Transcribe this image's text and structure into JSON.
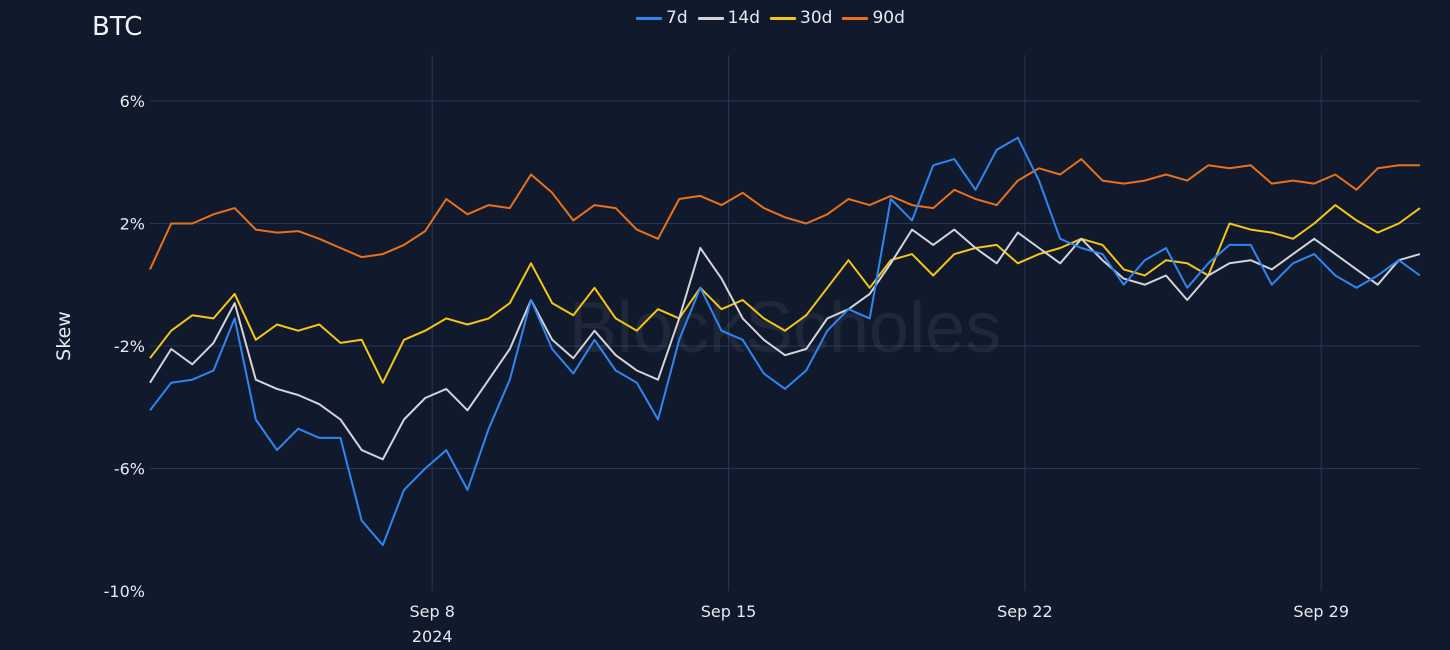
{
  "chart_data": {
    "type": "line",
    "title": "BTC",
    "xlabel": "",
    "ylabel": "Skew",
    "ylim": [
      -10,
      7.5
    ],
    "xlim": [
      "2024-09-01T08:00",
      "2024-10-01T08:00"
    ],
    "y_ticks": [
      6,
      2,
      -2,
      -6,
      -10
    ],
    "y_tick_labels": [
      "6%",
      "2%",
      "-2%",
      "-6%",
      "-10%"
    ],
    "x_ticks": [
      "2024-09-08T00:00",
      "2024-09-15T00:00",
      "2024-09-22T00:00",
      "2024-09-29T00:00"
    ],
    "x_tick_labels": [
      "Sep 8",
      "Sep 15",
      "Sep 22",
      "Sep 29"
    ],
    "x_tick_year": "2024",
    "grid": true,
    "legend_position": "top-center",
    "background_color": "#111a2c",
    "grid_color": "#26365a",
    "watermark": "BlockScholes",
    "x": [
      "2024-09-01T08:00",
      "2024-09-01T20:00",
      "2024-09-02T08:00",
      "2024-09-02T20:00",
      "2024-09-03T08:00",
      "2024-09-03T20:00",
      "2024-09-04T08:00",
      "2024-09-04T20:00",
      "2024-09-05T08:00",
      "2024-09-05T20:00",
      "2024-09-06T08:00",
      "2024-09-06T20:00",
      "2024-09-07T08:00",
      "2024-09-07T20:00",
      "2024-09-08T08:00",
      "2024-09-08T20:00",
      "2024-09-09T08:00",
      "2024-09-09T20:00",
      "2024-09-10T08:00",
      "2024-09-10T20:00",
      "2024-09-11T08:00",
      "2024-09-11T20:00",
      "2024-09-12T08:00",
      "2024-09-12T20:00",
      "2024-09-13T08:00",
      "2024-09-13T20:00",
      "2024-09-14T08:00",
      "2024-09-14T20:00",
      "2024-09-15T08:00",
      "2024-09-15T20:00",
      "2024-09-16T08:00",
      "2024-09-16T20:00",
      "2024-09-17T08:00",
      "2024-09-17T20:00",
      "2024-09-18T08:00",
      "2024-09-18T20:00",
      "2024-09-19T08:00",
      "2024-09-19T20:00",
      "2024-09-20T08:00",
      "2024-09-20T20:00",
      "2024-09-21T08:00",
      "2024-09-21T20:00",
      "2024-09-22T08:00",
      "2024-09-22T20:00",
      "2024-09-23T08:00",
      "2024-09-23T20:00",
      "2024-09-24T08:00",
      "2024-09-24T20:00",
      "2024-09-25T08:00",
      "2024-09-25T20:00",
      "2024-09-26T08:00",
      "2024-09-26T20:00",
      "2024-09-27T08:00",
      "2024-09-27T20:00",
      "2024-09-28T08:00",
      "2024-09-28T20:00",
      "2024-09-29T08:00",
      "2024-09-29T20:00",
      "2024-09-30T08:00",
      "2024-09-30T20:00",
      "2024-10-01T08:00"
    ],
    "series": [
      {
        "name": "7d",
        "color": "#2f86f0",
        "values": [
          -4.1,
          -3.2,
          -3.1,
          -2.8,
          -1.1,
          -4.4,
          -5.4,
          -4.7,
          -5.0,
          -5.0,
          -7.7,
          -8.5,
          -6.7,
          -6.0,
          -5.4,
          -6.7,
          -4.7,
          -3.1,
          -0.5,
          -2.1,
          -2.9,
          -1.8,
          -2.8,
          -3.2,
          -4.4,
          -1.8,
          -0.1,
          -1.5,
          -1.8,
          -2.9,
          -3.4,
          -2.8,
          -1.5,
          -0.8,
          -1.1,
          2.8,
          2.1,
          3.9,
          4.1,
          3.1,
          4.4,
          4.8,
          3.4,
          1.5,
          1.2,
          1.0,
          0.0,
          0.8,
          1.2,
          -0.1,
          0.7,
          1.3,
          1.3,
          0.0,
          0.7,
          1.0,
          0.3,
          -0.1,
          0.3,
          0.8,
          0.3
        ]
      },
      {
        "name": "14d",
        "color": "#d2d4d8",
        "values": [
          -3.2,
          -2.1,
          -2.6,
          -1.9,
          -0.6,
          -3.1,
          -3.4,
          -3.6,
          -3.9,
          -4.4,
          -5.4,
          -5.7,
          -4.4,
          -3.7,
          -3.4,
          -4.1,
          -3.1,
          -2.1,
          -0.5,
          -1.8,
          -2.4,
          -1.5,
          -2.3,
          -2.8,
          -3.1,
          -1.1,
          1.2,
          0.2,
          -1.1,
          -1.8,
          -2.3,
          -2.1,
          -1.1,
          -0.8,
          -0.3,
          0.7,
          1.8,
          1.3,
          1.8,
          1.2,
          0.7,
          1.7,
          1.2,
          0.7,
          1.5,
          0.8,
          0.2,
          0.0,
          0.3,
          -0.5,
          0.3,
          0.7,
          0.8,
          0.5,
          1.0,
          1.5,
          1.0,
          0.5,
          0.0,
          0.8,
          1.0
        ]
      },
      {
        "name": "30d",
        "color": "#f5c518",
        "values": [
          -2.4,
          -1.5,
          -1.0,
          -1.1,
          -0.3,
          -1.8,
          -1.3,
          -1.5,
          -1.3,
          -1.9,
          -1.8,
          -3.2,
          -1.8,
          -1.5,
          -1.1,
          -1.3,
          -1.1,
          -0.6,
          0.7,
          -0.6,
          -1.0,
          -0.1,
          -1.1,
          -1.5,
          -0.8,
          -1.1,
          -0.1,
          -0.8,
          -0.5,
          -1.1,
          -1.5,
          -1.0,
          -0.1,
          0.8,
          -0.1,
          0.8,
          1.0,
          0.3,
          1.0,
          1.2,
          1.3,
          0.7,
          1.0,
          1.2,
          1.5,
          1.3,
          0.5,
          0.3,
          0.8,
          0.7,
          0.3,
          2.0,
          1.8,
          1.7,
          1.5,
          2.0,
          2.6,
          2.1,
          1.7,
          2.0,
          2.5
        ]
      },
      {
        "name": "90d",
        "color": "#e8711a",
        "values": [
          0.5,
          2.0,
          2.0,
          2.3,
          2.5,
          1.8,
          1.7,
          1.75,
          1.5,
          1.2,
          0.9,
          1.0,
          1.3,
          1.75,
          2.8,
          2.3,
          2.6,
          2.5,
          3.6,
          3.0,
          2.1,
          2.6,
          2.5,
          1.8,
          1.5,
          2.8,
          2.9,
          2.6,
          3.0,
          2.5,
          2.2,
          2.0,
          2.3,
          2.8,
          2.6,
          2.9,
          2.6,
          2.5,
          3.1,
          2.8,
          2.6,
          3.4,
          3.8,
          3.6,
          4.1,
          3.4,
          3.3,
          3.4,
          3.6,
          3.4,
          3.9,
          3.8,
          3.9,
          3.3,
          3.4,
          3.3,
          3.6,
          3.1,
          3.8,
          3.9,
          3.9
        ]
      }
    ]
  }
}
